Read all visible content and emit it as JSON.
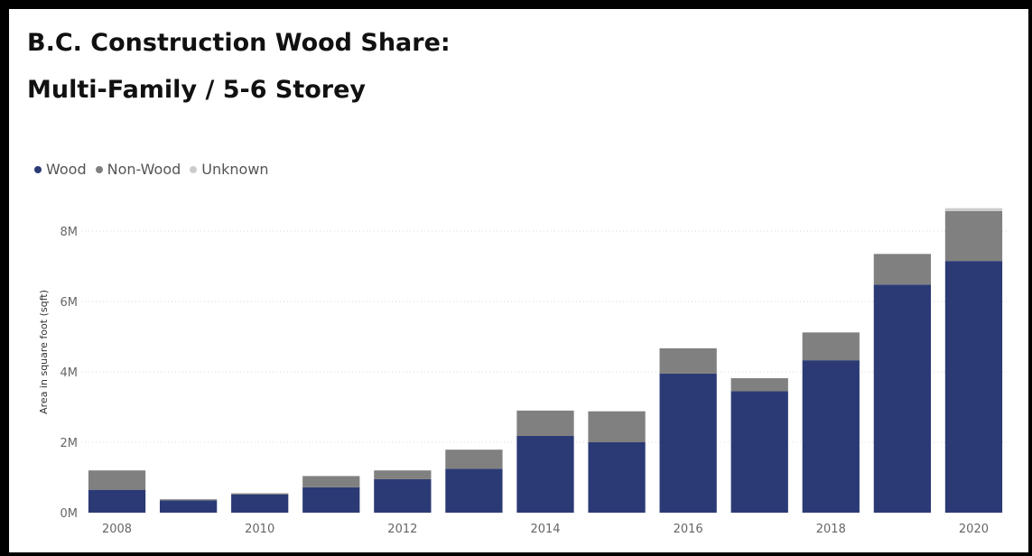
{
  "title_line_1": "B.C. Construction Wood Share:",
  "title_line_2": "Multi-Family / 5-6 Storey",
  "chart_data": {
    "type": "bar",
    "stacked": true,
    "title": "B.C. Construction Wood Share: Multi-Family / 5-6 Storey",
    "xlabel": "",
    "ylabel": "Area in square foot (sqft)",
    "ylim": [
      0,
      8000000
    ],
    "y_ticks": [
      0,
      2000000,
      4000000,
      6000000,
      8000000
    ],
    "y_tick_labels": [
      "0M",
      "2M",
      "4M",
      "6M",
      "8M"
    ],
    "categories": [
      "2008",
      "2009",
      "2010",
      "2011",
      "2012",
      "2013",
      "2014",
      "2015",
      "2016",
      "2017",
      "2018",
      "2019",
      "2020"
    ],
    "x_tick_labels": [
      "2008",
      "",
      "2010",
      "",
      "2012",
      "",
      "2014",
      "",
      "2016",
      "",
      "2018",
      "",
      "2020"
    ],
    "grid": true,
    "legend_position": "top-left",
    "series": [
      {
        "name": "Wood",
        "color": "#2b3a75",
        "values": [
          650000,
          350000,
          520000,
          720000,
          950000,
          1250000,
          2180000,
          2000000,
          3950000,
          3450000,
          4330000,
          6480000,
          7150000
        ]
      },
      {
        "name": "Non-Wood",
        "color": "#808080",
        "values": [
          550000,
          30000,
          30000,
          320000,
          250000,
          540000,
          720000,
          880000,
          720000,
          370000,
          790000,
          870000,
          1420000
        ]
      },
      {
        "name": "Unknown",
        "color": "#cccccc",
        "values": [
          0,
          0,
          0,
          0,
          0,
          0,
          0,
          0,
          0,
          0,
          0,
          0,
          80000
        ]
      }
    ]
  }
}
